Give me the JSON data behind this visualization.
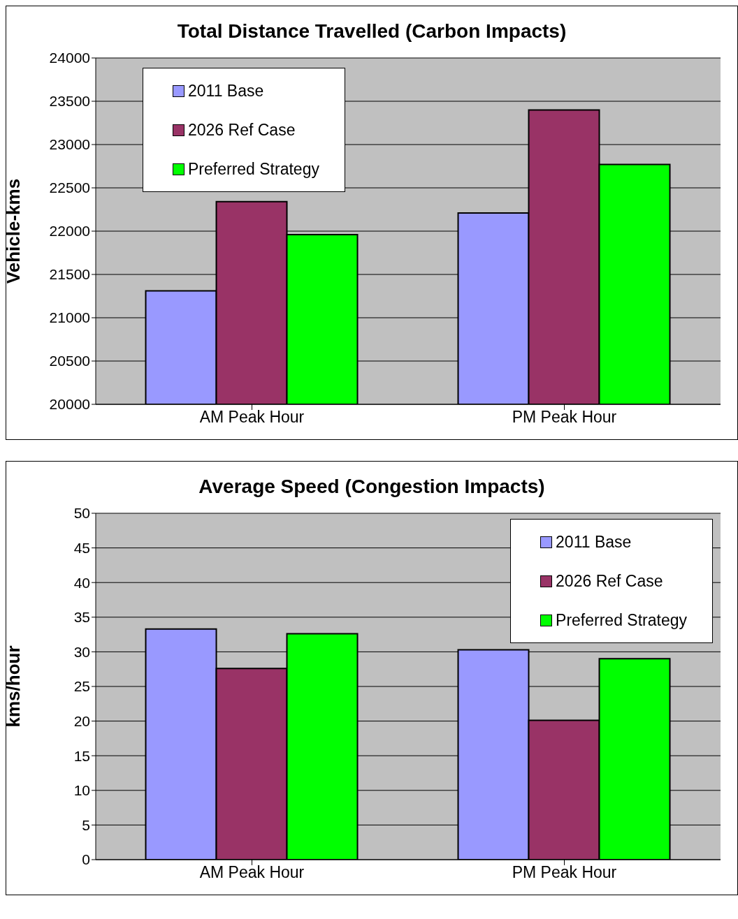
{
  "chart_data": [
    {
      "type": "bar",
      "title": "Total Distance Travelled (Carbon Impacts)",
      "ylabel": "Vehicle-kms",
      "categories": [
        "AM Peak Hour",
        "PM Peak Hour"
      ],
      "series": [
        {
          "name": "2011 Base",
          "color": "#9999ff",
          "values": [
            21310,
            22210
          ]
        },
        {
          "name": "2026 Ref Case",
          "color": "#993366",
          "values": [
            22340,
            23400
          ]
        },
        {
          "name": "Preferred Strategy",
          "color": "#00ff00",
          "values": [
            21960,
            22770
          ]
        }
      ],
      "ylim": [
        20000,
        24000
      ],
      "yticks": [
        20000,
        20500,
        21000,
        21500,
        22000,
        22500,
        23000,
        23500,
        24000
      ],
      "grid": "y",
      "legend": "top left"
    },
    {
      "type": "bar",
      "title": "Average Speed (Congestion Impacts)",
      "ylabel": "kms/hour",
      "categories": [
        "AM Peak Hour",
        "PM Peak Hour"
      ],
      "series": [
        {
          "name": "2011 Base",
          "color": "#9999ff",
          "values": [
            33.3,
            30.3
          ]
        },
        {
          "name": "2026 Ref Case",
          "color": "#993366",
          "values": [
            27.6,
            20.1
          ]
        },
        {
          "name": "Preferred Strategy",
          "color": "#00ff00",
          "values": [
            32.6,
            29.0
          ]
        }
      ],
      "ylim": [
        0,
        50
      ],
      "yticks": [
        0,
        5,
        10,
        15,
        20,
        25,
        30,
        35,
        40,
        45,
        50
      ],
      "grid": "y",
      "legend": "top right"
    }
  ]
}
